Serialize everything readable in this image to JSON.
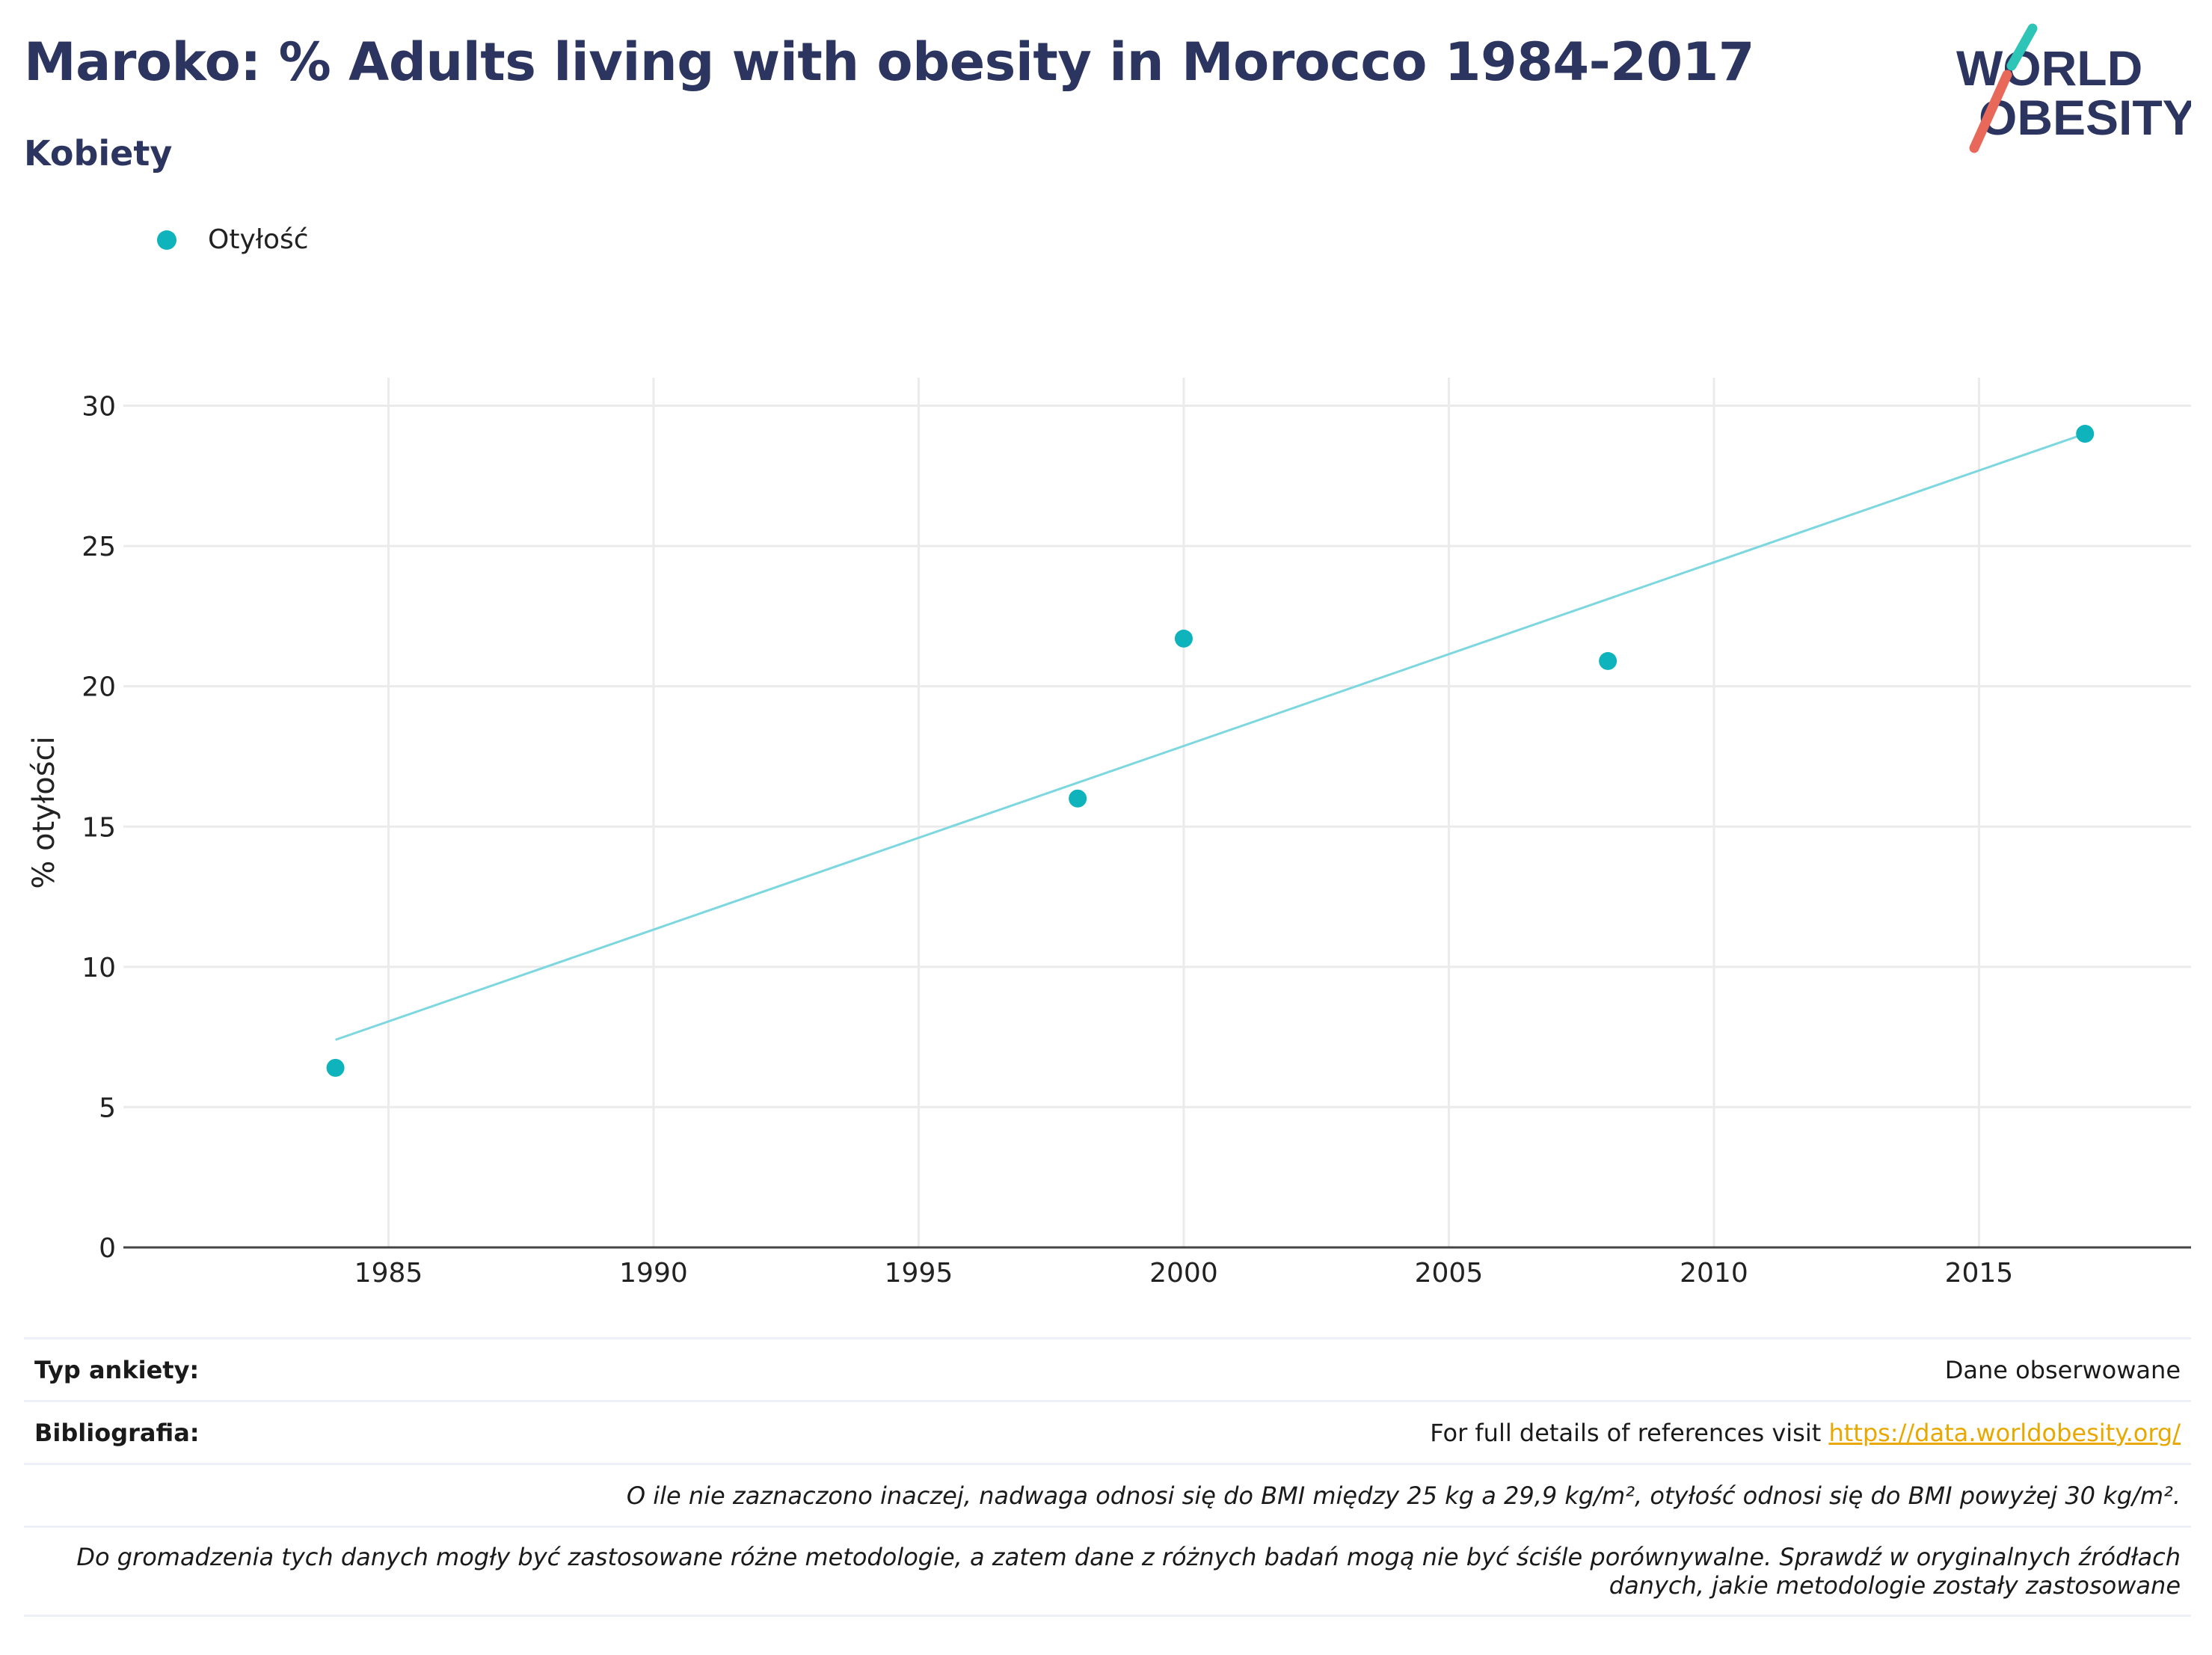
{
  "title": "Maroko: % Adults living with obesity in Morocco 1984-2017",
  "subtitle": "Kobiety",
  "logo": {
    "line1": "WORLD",
    "line2": "OBESITY"
  },
  "colors": {
    "title": "#2c3560",
    "series": "#0fb3bb",
    "trend": "#7dd7de",
    "grid": "#ebebeb",
    "link": "#e8a800",
    "logo_teal": "#2ec4b6",
    "logo_red": "#e8685a"
  },
  "legend": {
    "label": "Otyłość"
  },
  "chart_data": {
    "type": "scatter",
    "ylabel": "% otyłości",
    "xlabel": "",
    "xlim": [
      1980,
      2019
    ],
    "ylim": [
      0,
      31
    ],
    "xticks": [
      1985,
      1990,
      1995,
      2000,
      2005,
      2010,
      2015
    ],
    "yticks": [
      0,
      5,
      10,
      15,
      20,
      25,
      30
    ],
    "grid": true,
    "legend_position": "top-left",
    "series": [
      {
        "name": "Otyłość",
        "points": [
          {
            "x": 1984,
            "y": 6.4
          },
          {
            "x": 1998,
            "y": 16.0
          },
          {
            "x": 2000,
            "y": 21.7
          },
          {
            "x": 2008,
            "y": 20.9
          },
          {
            "x": 2017,
            "y": 29.0
          }
        ]
      }
    ],
    "trendline": {
      "x": [
        1984,
        2017
      ],
      "y": [
        7.4,
        29.0
      ]
    }
  },
  "footer": {
    "survey_label": "Typ ankiety:",
    "survey_value": "Dane obserwowane",
    "biblio_label": "Bibliografia:",
    "biblio_text": "For full details of references visit ",
    "biblio_link": "https://data.worldobesity.org/",
    "note1": "O ile nie zaznaczono inaczej, nadwaga odnosi się do BMI między 25 kg a 29,9 kg/m², otyłość odnosi się do BMI powyżej 30 kg/m².",
    "note2a": "Do gromadzenia tych danych mogły być zastosowane różne metodologie, a zatem dane z różnych badań mogą nie być ściśle porównywalne. Sprawdź w oryginalnych źródłach",
    "note2b": "danych, jakie metodologie zostały zastosowane"
  }
}
